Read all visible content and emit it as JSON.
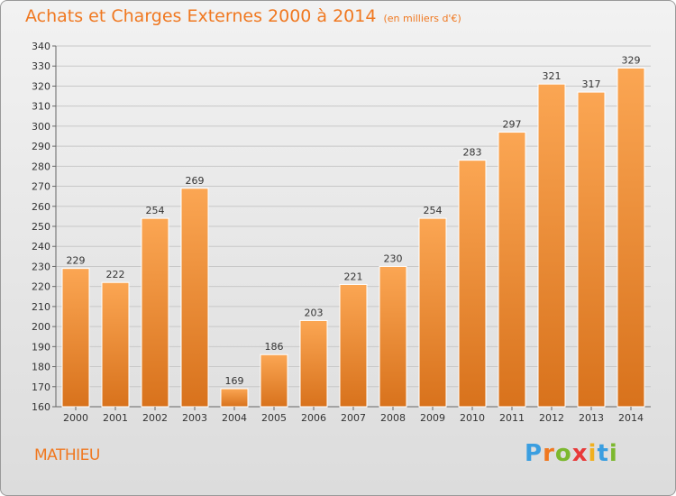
{
  "header": {
    "title": "Achats et Charges Externes 2000 à 2014",
    "unit": "(en milliers d'€)"
  },
  "footer": {
    "place": "MATHIEU",
    "logo": [
      "P",
      "r",
      "o",
      "x",
      "i",
      "t",
      "i"
    ],
    "logo_colors": [
      "#3a9ee0",
      "#f07820",
      "#7cb82f",
      "#e83a3a",
      "#f0b020",
      "#3a9ee0",
      "#7cb82f"
    ]
  },
  "colors": {
    "accent": "#f07820",
    "bar_light": "#fba653",
    "bar_dark": "#d8721c"
  },
  "chart_data": {
    "type": "bar",
    "title": "Achats et Charges Externes 2000 à 2014",
    "categories": [
      "2000",
      "2001",
      "2002",
      "2003",
      "2004",
      "2005",
      "2006",
      "2007",
      "2008",
      "2009",
      "2010",
      "2011",
      "2012",
      "2013",
      "2014"
    ],
    "values": [
      229,
      222,
      254,
      269,
      169,
      186,
      203,
      221,
      230,
      254,
      283,
      297,
      321,
      317,
      329
    ],
    "ylim": [
      160,
      340
    ],
    "yticks": [
      160,
      170,
      180,
      190,
      200,
      210,
      220,
      230,
      240,
      250,
      260,
      270,
      280,
      290,
      300,
      310,
      320,
      330,
      340
    ],
    "grid": true,
    "xlabel": "",
    "ylabel": ""
  }
}
